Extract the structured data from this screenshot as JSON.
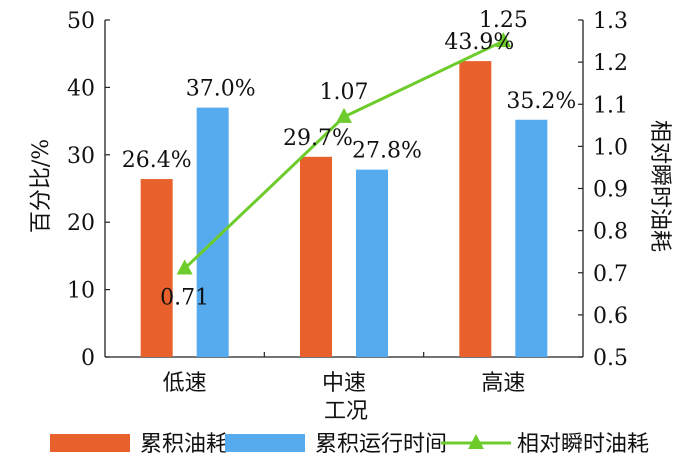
{
  "chart_data": {
    "type": "bar",
    "categories": [
      "低速",
      "中速",
      "高速"
    ],
    "xlabel": "工况",
    "ylabel": "百分比/%",
    "y2label": "相对瞬时油耗",
    "ylim": [
      0,
      50
    ],
    "yticks": [
      "0",
      "10",
      "20",
      "30",
      "40",
      "50"
    ],
    "y2lim": [
      0.5,
      1.3
    ],
    "y2ticks": [
      "0.5",
      "0.6",
      "0.7",
      "0.8",
      "0.9",
      "1.0",
      "1.1",
      "1.2",
      "1.3"
    ],
    "grid": false,
    "legend_position": "bottom",
    "series": [
      {
        "name": "累积油耗",
        "kind": "bar",
        "axis": "left",
        "color": "#e8602c",
        "values": [
          26.4,
          29.7,
          43.9
        ],
        "labels": [
          "26.4%",
          "29.7%",
          "43.9%"
        ]
      },
      {
        "name": "累积运行时间",
        "kind": "bar",
        "axis": "left",
        "color": "#56aaee",
        "values": [
          37.0,
          27.8,
          35.2
        ],
        "labels": [
          "37.0%",
          "27.8%",
          "35.2%"
        ]
      },
      {
        "name": "相对瞬时油耗",
        "kind": "line",
        "axis": "right",
        "color": "#6dcc2c",
        "marker": "triangle",
        "values": [
          0.71,
          1.07,
          1.25
        ],
        "labels": [
          "0.71",
          "1.07",
          "1.25"
        ]
      }
    ]
  }
}
